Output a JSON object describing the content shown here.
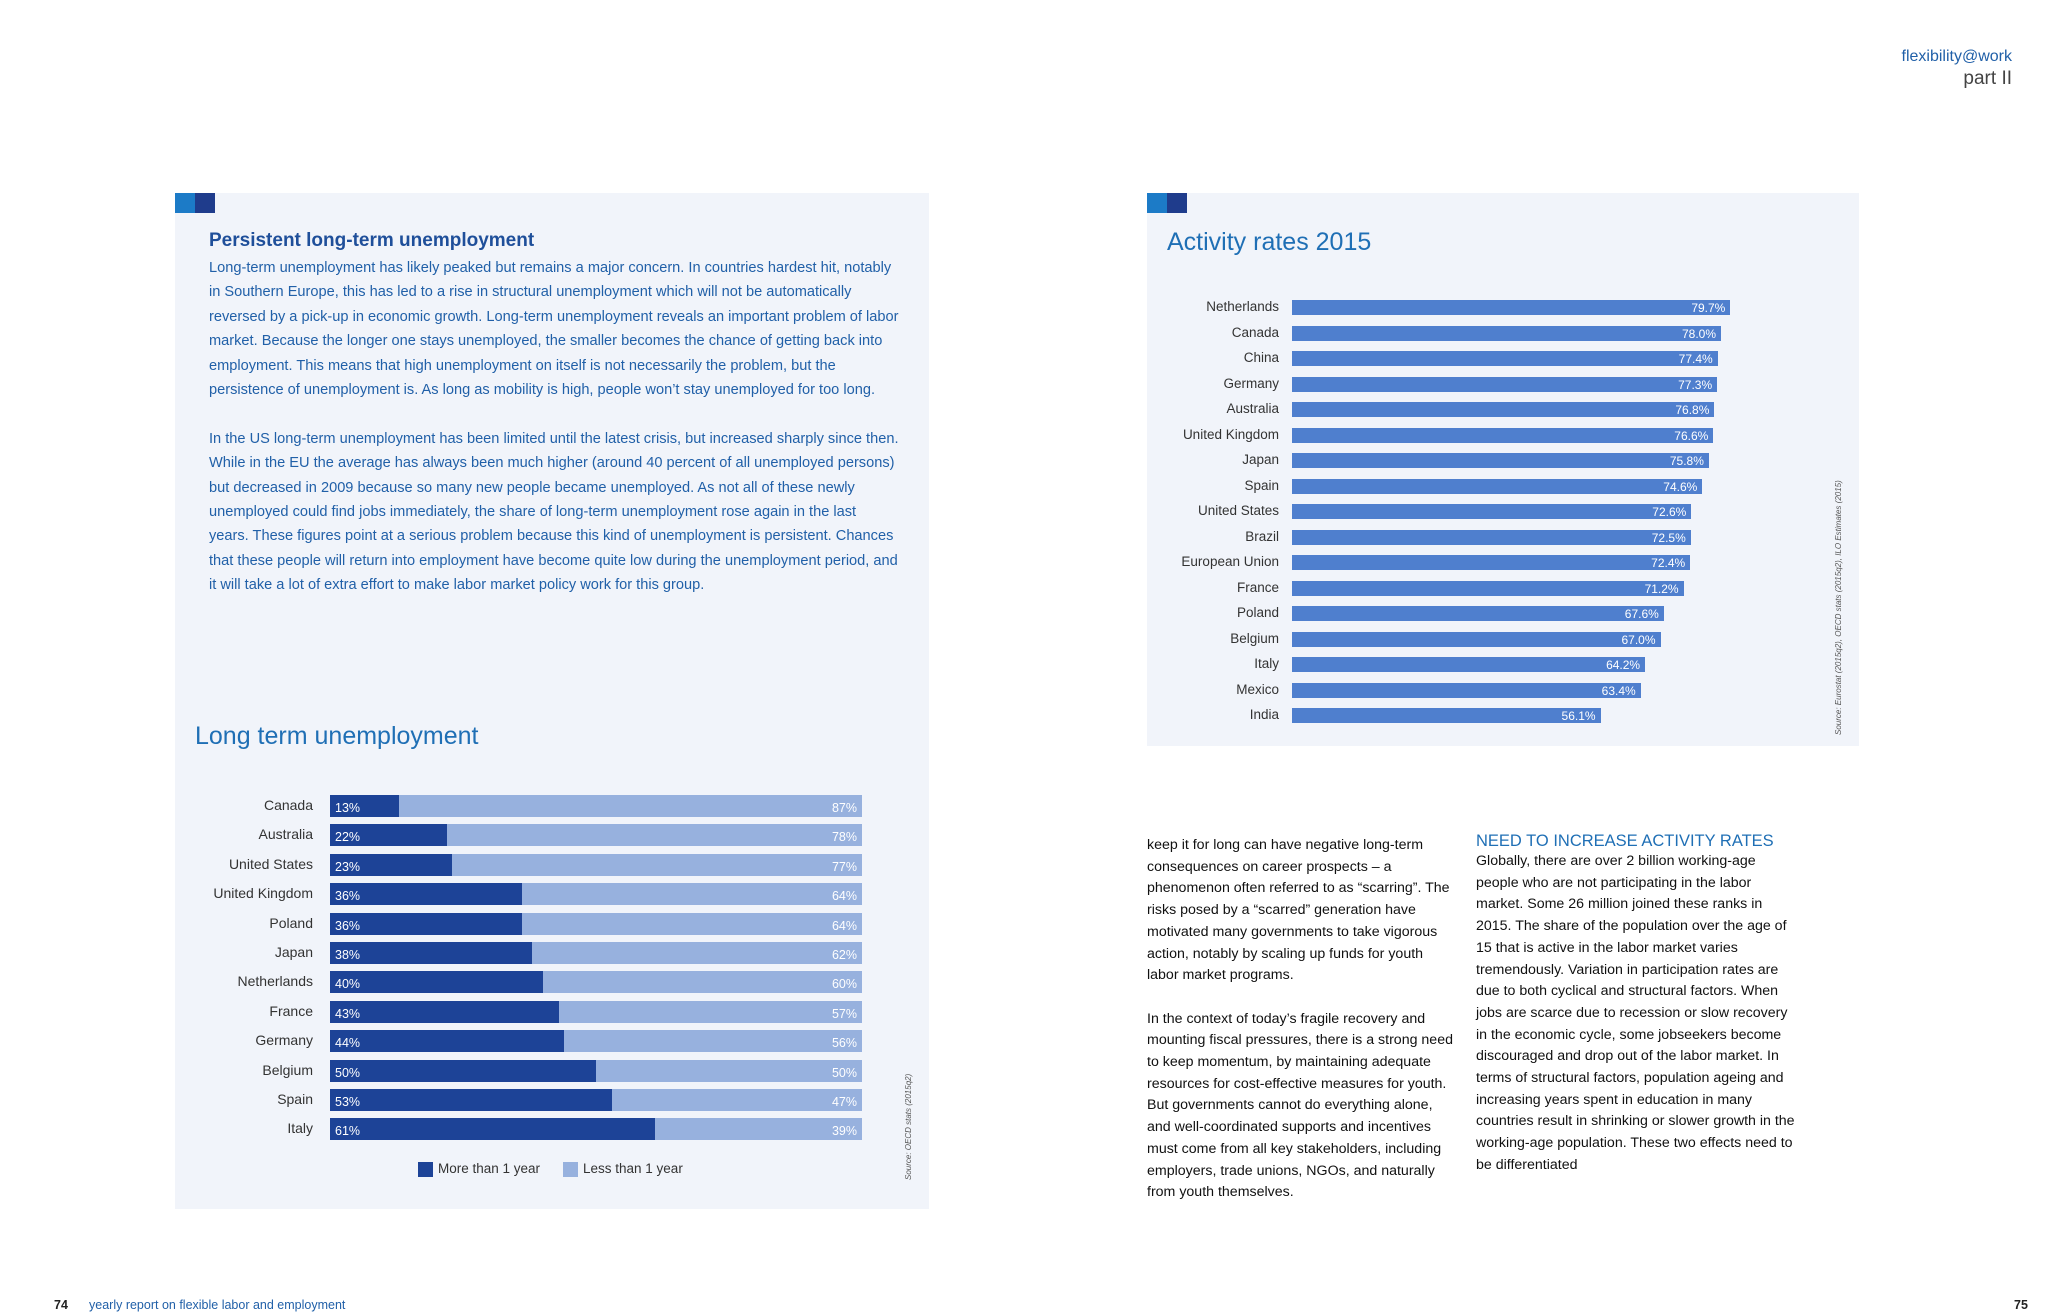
{
  "header": {
    "series": "flexibility@work",
    "part": "part II"
  },
  "box": {
    "heading": "Persistent long-term unemployment",
    "paragraphs": [
      "Long-term unemployment has likely peaked but remains a major concern. In countries hardest hit, notably in Southern Europe, this has led to a rise in structural unemployment which will not be automatically reversed by a pick-up in economic growth. Long-term unemployment reveals an important problem of labor market. Because the longer one stays unemployed, the smaller becomes the chance of getting back into employment. This means that high unemployment on itself is not necessarily the problem, but the persistence of unemployment is. As long as mobility is high, people won’t stay unemployed for too long.",
      "In the US long-term unemployment has been limited until the latest crisis, but increased sharply since then. While in the EU the average has always been much higher (around 40 percent of all unemployed persons) but decreased in 2009 because so many new people became unemployed. As not all of these newly unemployed could find jobs immediately, the share of long-term unem­ployment rose again in the last years. These figures point at a serious problem because this kind of unemployment is persistent. Chances that these people will return into employment have become quite low during the unemployment period, and it will take a lot of extra effort to make labor market policy work for this group."
    ]
  },
  "chart_data": [
    {
      "type": "bar",
      "orientation": "horizontal",
      "stacked": true,
      "title": "Long term unemployment",
      "categories": [
        "Canada",
        "Australia",
        "United States",
        "United Kingdom",
        "Poland",
        "Japan",
        "Netherlands",
        "France",
        "Germany",
        "Belgium",
        "Spain",
        "Italy"
      ],
      "series": [
        {
          "name": "More than 1 year",
          "color": "#1d4397",
          "values": [
            13,
            22,
            23,
            36,
            36,
            38,
            40,
            43,
            44,
            50,
            53,
            61
          ]
        },
        {
          "name": "Less than 1 year",
          "color": "#97b1de",
          "values": [
            87,
            78,
            77,
            64,
            64,
            62,
            60,
            57,
            56,
            50,
            47,
            39
          ]
        }
      ],
      "unit": "%",
      "xlim": [
        0,
        100
      ],
      "legend": "bottom",
      "source": "Source: OECD stats (2015q2)"
    },
    {
      "type": "bar",
      "orientation": "horizontal",
      "title": "Activity rates 2015",
      "categories": [
        "Netherlands",
        "Canada",
        "China",
        "Germany",
        "Australia",
        "United Kingdom",
        "Japan",
        "Spain",
        "United States",
        "Brazil",
        "European Union",
        "France",
        "Poland",
        "Belgium",
        "Italy",
        "Mexico",
        "India"
      ],
      "values": [
        79.7,
        78.0,
        77.4,
        77.3,
        76.8,
        76.6,
        75.8,
        74.6,
        72.6,
        72.5,
        72.4,
        71.2,
        67.6,
        67.0,
        64.2,
        63.4,
        56.1
      ],
      "unit": "%",
      "color": "#4f7fce",
      "xlim": [
        0,
        100
      ],
      "source": "Source: Eurostat (2015q2), OECD stats (2015q2), ILO Estimates (2015)"
    }
  ],
  "column1": {
    "paragraphs": [
      "keep it for long can have negative long-term consequences on career prospects – a phenomenon often referred to as “scarring”. The risks posed by a “scarred” generation have motivated many governments to take vigorous action, notably by scaling up funds for youth labor market programs.",
      "In the context of today’s fragile recovery and mounting fiscal pressures, there is a strong need to keep momentum, by maintaining adequate resources for cost-effective measures for youth. But governments cannot do everything alone, and well-coordinated supports and incentives must come from all key stakeholders, including employers, trade unions, NGOs, and naturally from youth themselves."
    ]
  },
  "column2": {
    "heading": "NEED TO INCREASE ACTIVITY RATES",
    "text": "Globally, there are over 2 billion working-age people who are not participating in the labor market. Some 26 million joined these ranks in 2015. The share of the population over the age of 15 that is active in the labor market varies tremendously. Variation in participation rates are due to both cyclical and structural factors. When jobs are scarce due to recession or slow recovery in the economic cycle, some jobseekers become discouraged and drop out of the labor market. In terms of structural factors, population ageing and increasing years spent in education in many countries result in shrinking or slower growth in the working-age population. These two effects need to be differentiated"
  },
  "footer": {
    "left_page": "74",
    "left_text": "yearly report on flexible labor and employment",
    "right_page": "75"
  }
}
